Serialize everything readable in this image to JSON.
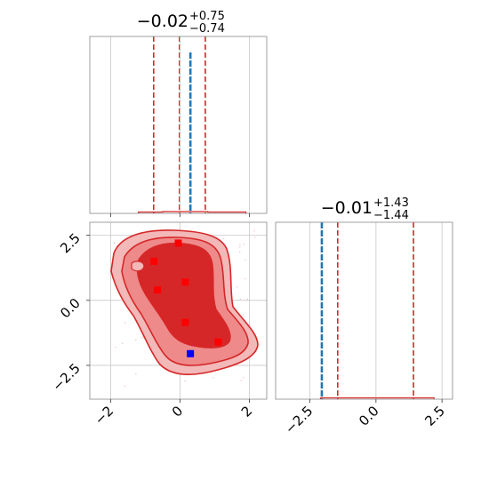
{
  "chart_data": [
    {
      "type": "histogram",
      "panel": "top-left marginal",
      "title": {
        "value": "−0.02",
        "upper": "+0.75",
        "lower": "−0.74"
      },
      "xlim": [
        -2.6,
        2.5
      ],
      "histogram_color": "#d62728",
      "quantile_lines": [
        -0.76,
        -0.02,
        0.73
      ],
      "quantile_color": "#d62728",
      "truth_line": 0.3,
      "truth_color": "#1f77b4",
      "grid": true
    },
    {
      "type": "contour",
      "panel": "bottom-left 2D",
      "xlim": [
        -2.6,
        2.5
      ],
      "ylim": [
        -3.8,
        3.0
      ],
      "xticks": [
        -2,
        0,
        2
      ],
      "xtick_labels": [
        "−2",
        "0",
        "2"
      ],
      "yticks": [
        -2.5,
        0.0,
        2.5
      ],
      "ytick_labels": [
        "−2.5",
        "0.0",
        "2.5"
      ],
      "contour_color": "#d62728",
      "grid": true,
      "red_markers": [
        {
          "x": -0.05,
          "y": 2.2
        },
        {
          "x": -0.75,
          "y": 1.5
        },
        {
          "x": 0.15,
          "y": 0.7
        },
        {
          "x": -0.65,
          "y": 0.4
        },
        {
          "x": 0.15,
          "y": -0.85
        },
        {
          "x": 1.1,
          "y": -1.6
        }
      ],
      "blue_marker": {
        "x": 0.3,
        "y": -2.05
      },
      "red_marker_color": "#ff0000",
      "blue_marker_color": "#0000ff"
    },
    {
      "type": "histogram",
      "panel": "bottom-right marginal",
      "title": {
        "value": "−0.01",
        "upper": "+1.43",
        "lower": "−1.44"
      },
      "xlim": [
        -3.8,
        2.9
      ],
      "xticks": [
        -2.5,
        0.0,
        2.5
      ],
      "xtick_labels": [
        "−2.5",
        "0.0",
        "2.5"
      ],
      "histogram_color": "#d62728",
      "quantile_lines": [
        -1.45,
        -0.01,
        1.42
      ],
      "quantile_color": "#d62728",
      "truth_line": -2.05,
      "truth_color": "#1f77b4",
      "grid": true
    }
  ]
}
